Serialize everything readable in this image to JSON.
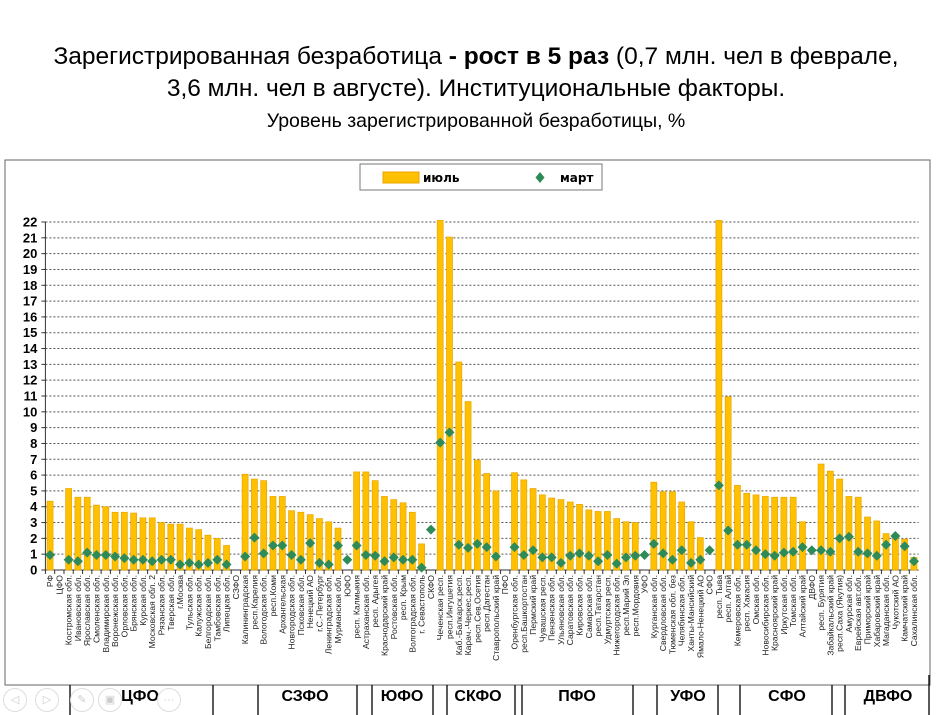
{
  "title": {
    "part1": "Зарегистрированная безработица ",
    "bold": "- рост в 5 раз",
    "part2": " (0,7 млн. чел в феврале,",
    "line2": "3,6 млн. чел в августе). Институциональные факторы.",
    "subtitle": "Уровень зарегистрированной безработицы, %"
  },
  "districts": [
    "ЦФО",
    "СЗФО",
    "ЮФО",
    "СКФО",
    "ПФО",
    "УФО",
    "СФО",
    "ДВФО"
  ],
  "slide_nav": {
    "prev": "◁",
    "next": "▷",
    "pen": "✎",
    "slides": "▣",
    "more": "···"
  },
  "colors": {
    "bar": "#FFC000",
    "bar_edge": "#E8A600",
    "marker": "#2E8B57",
    "grid": "#555555"
  },
  "chart_data": {
    "type": "bar",
    "title": "Уровень зарегистрированной безработицы, %",
    "xlabel": "",
    "ylabel": "",
    "ylim": [
      0,
      22
    ],
    "yticks": [
      0,
      1,
      2,
      3,
      4,
      5,
      6,
      7,
      8,
      9,
      10,
      11,
      12,
      13,
      14,
      15,
      16,
      17,
      18,
      19,
      20,
      21,
      22
    ],
    "grid": true,
    "legend_position": "top-center",
    "categories": [
      "РФ",
      "ЦФО",
      "Костромская обл.",
      "Ивановская обл.",
      "Ярославская обл.",
      "Смоленская обл.",
      "Владимирская обл.",
      "Воронежская обл.",
      "Орловская обл.",
      "Брянская обл.",
      "Курская обл.",
      "Московская обл. 2",
      "Рязанская обл.",
      "Тверская обл.",
      "г.Москва",
      "Тульская обл.",
      "Калужская обл.",
      "Белгородская обл.",
      "Тамбовская обл.",
      "Липецкая обл.",
      "СЗФО",
      "Калининградская",
      "респ.Карелия",
      "Вологодская обл.",
      "респ.Коми",
      "Архангельская",
      "Новгородская обл.",
      "Псковская обл.",
      "Ненецкий АО",
      "г.С.-Петербург",
      "Ленинградская обл.",
      "Мурманская обл.",
      "ЮФО",
      "респ. Калмыкия",
      "Астраханская обл.",
      "респ. Адыгея",
      "Краснодарский край",
      "Ростовская обл.",
      "респ. Крым",
      "Волгоградская обл.",
      "г. Севастополь",
      "СКФО",
      "Чеченская респ.",
      "респ.Ингушетия",
      "Каб.-Балкарск.респ.",
      "Карач.-Черкес.респ.",
      "респ.Сев.Осетия",
      "респ.Дагестан",
      "Ставропольский край",
      "ПФО",
      "Оренбургская обл.",
      "респ.Башкортостан",
      "Пермский край",
      "Чувашская респ.",
      "Пензенская обл.",
      "Ульяновская обл.",
      "Саратовская обл.",
      "Кировская обл.",
      "Самарская обл.",
      "респ.Татарстан",
      "Удмуртская респ.",
      "Нижегородская обл.",
      "респ.Марий Эл",
      "респ.Мордовия",
      "УФО",
      "Курганская обл.",
      "Свердловская обл.",
      "Тюменская обл. без",
      "Челябинская обл.",
      "Ханты-Мансийский",
      "Ямало-Ненецкий АО",
      "СФО",
      "респ. Тыва",
      "респ. Алтай",
      "Кемеровская обл.",
      "респ. Хакасия",
      "Омская обл.",
      "Новосибирская обл.",
      "Красноярский край",
      "Иркутская обл.",
      "Томская обл.",
      "Алтайский край",
      "ДВФО",
      "респ. Бурятия",
      "Забайкальский край",
      "респ.Саха (Якутия)",
      "Амурская обл.",
      "Еврейская авт.обл.",
      "Приморский край",
      "Хабаровский край",
      "Магаданская обл.",
      "Чукотский АО",
      "Камчатский край",
      "Сахалинская обл."
    ],
    "series": [
      {
        "name": "июль",
        "type": "bar",
        "values": [
          4.35,
          null,
          5.15,
          4.6,
          4.6,
          4.1,
          4.0,
          3.65,
          3.65,
          3.6,
          3.3,
          3.3,
          3.0,
          2.9,
          2.9,
          2.65,
          2.55,
          2.2,
          2.0,
          1.55,
          null,
          6.05,
          5.75,
          5.65,
          4.65,
          4.65,
          3.75,
          3.65,
          3.5,
          3.25,
          3.05,
          2.65,
          null,
          6.2,
          6.2,
          5.65,
          4.65,
          4.45,
          4.25,
          3.65,
          1.65,
          null,
          22.1,
          21.05,
          13.15,
          10.65,
          6.95,
          6.1,
          5.0,
          null,
          6.15,
          5.7,
          5.15,
          4.75,
          4.55,
          4.45,
          4.3,
          4.15,
          3.8,
          3.7,
          3.7,
          3.25,
          3.05,
          3.0,
          null,
          5.55,
          4.95,
          4.95,
          4.3,
          3.05,
          2.05,
          null,
          22.1,
          10.95,
          5.35,
          4.85,
          4.75,
          4.65,
          4.6,
          4.6,
          4.6,
          3.05,
          null,
          6.7,
          6.25,
          5.75,
          4.65,
          4.6,
          3.35,
          3.1,
          2.3,
          2.05,
          1.95,
          0.8
        ]
      },
      {
        "name": "март",
        "type": "scatter",
        "values": [
          0.95,
          null,
          0.65,
          0.55,
          1.1,
          0.95,
          0.95,
          0.85,
          0.75,
          0.65,
          0.65,
          0.55,
          0.65,
          0.65,
          0.35,
          0.45,
          0.35,
          0.45,
          0.65,
          0.35,
          null,
          0.85,
          2.05,
          1.05,
          1.55,
          1.55,
          0.95,
          0.65,
          1.7,
          0.45,
          0.35,
          1.55,
          0.65,
          1.55,
          0.95,
          0.9,
          0.55,
          0.8,
          0.65,
          0.65,
          0.15,
          2.55,
          8.05,
          8.7,
          1.6,
          1.4,
          1.65,
          1.45,
          0.85,
          null,
          1.45,
          0.95,
          1.25,
          0.8,
          0.8,
          0.45,
          0.9,
          1.05,
          0.9,
          0.55,
          0.95,
          0.4,
          0.8,
          0.9,
          0.95,
          1.65,
          1.05,
          0.65,
          1.25,
          0.45,
          0.65,
          1.25,
          5.35,
          2.5,
          1.6,
          1.6,
          1.25,
          1.0,
          0.9,
          1.1,
          1.15,
          1.45,
          1.25,
          1.25,
          1.15,
          2.0,
          2.1,
          1.15,
          1.05,
          0.9,
          1.6,
          2.15,
          1.5,
          0.55
        ]
      }
    ]
  }
}
